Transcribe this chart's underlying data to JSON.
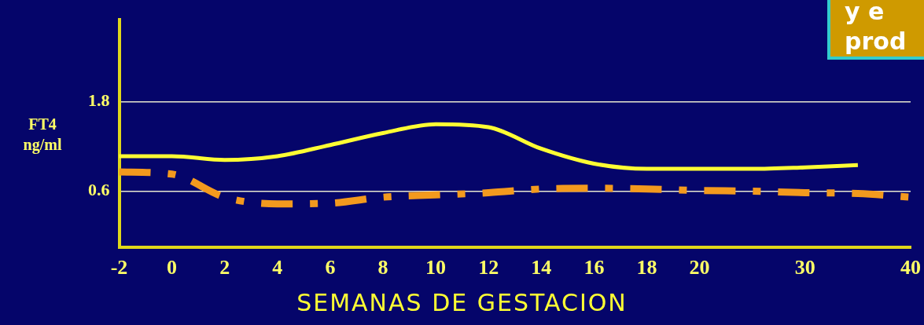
{
  "chart_data": {
    "type": "line",
    "xlabel": "SEMANAS DE GESTACION",
    "ylabel": "FT4\nng/ml",
    "categories": [
      "-2",
      "0",
      "2",
      "4",
      "6",
      "8",
      "10",
      "12",
      "14",
      "16",
      "18",
      "20",
      null,
      "30",
      null,
      "40"
    ],
    "series": [
      {
        "color": "#ffff33",
        "line_style": "solid",
        "values": [
          1.07,
          1.07,
          1.02,
          1.07,
          1.22,
          1.38,
          1.5,
          1.46,
          1.17,
          0.97,
          0.9,
          0.9,
          0.9,
          0.92,
          0.95,
          null
        ]
      },
      {
        "color": "#f39a1e",
        "line_style": "dashed",
        "values": [
          0.86,
          0.83,
          0.52,
          0.43,
          0.44,
          0.52,
          0.55,
          0.58,
          0.63,
          0.64,
          0.63,
          0.61,
          0.6,
          0.58,
          0.57,
          0.52
        ]
      }
    ],
    "ylim": [
      -0.15,
      2.9
    ],
    "yticks": [
      0.6,
      1.8
    ],
    "grid": "y",
    "marker": "none",
    "annotations": [
      "y e\nprod"
    ]
  }
}
